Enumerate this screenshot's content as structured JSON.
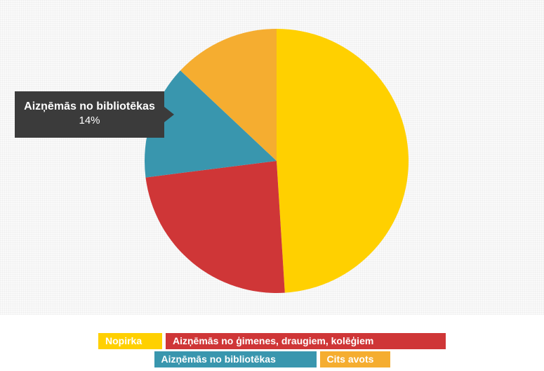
{
  "chart_data": {
    "type": "pie",
    "slices": [
      {
        "label": "Nopirka",
        "value": 49,
        "color": "#ffd000"
      },
      {
        "label": "Aizņēmās no ģimenes, draugiem, kolēģiem",
        "value": 24,
        "color": "#cf3637"
      },
      {
        "label": "Aizņēmās no bibliotēkas",
        "value": 14,
        "color": "#3996ae"
      },
      {
        "label": "Cits avots",
        "value": 13,
        "color": "#f5ad30"
      }
    ],
    "legend_position": "bottom",
    "tooltip": {
      "label": "Aizņēmās no bibliotēkas",
      "value": "14%"
    }
  }
}
